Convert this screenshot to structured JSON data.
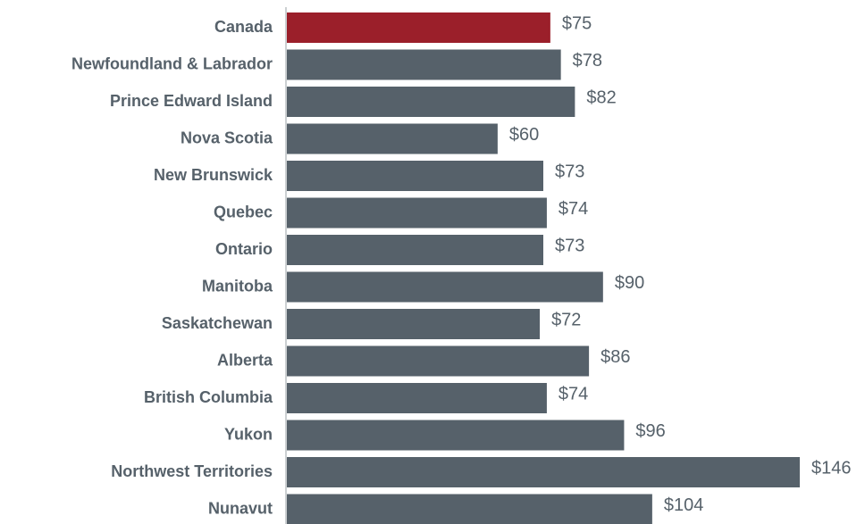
{
  "chart_data": {
    "type": "barh",
    "categories": [
      "Canada",
      "Newfoundland & Labrador",
      "Prince Edward Island",
      "Nova Scotia",
      "New Brunswick",
      "Quebec",
      "Ontario",
      "Manitoba",
      "Saskatchewan",
      "Alberta",
      "British Columbia",
      "Yukon",
      "Northwest Territories",
      "Nunavut"
    ],
    "values": [
      75,
      78,
      82,
      60,
      73,
      74,
      73,
      90,
      72,
      86,
      74,
      96,
      146,
      104
    ],
    "value_labels": [
      "$75",
      "$78",
      "$82",
      "$60",
      "$73",
      "$74",
      "$73",
      "$90",
      "$72",
      "$86",
      "$74",
      "$96",
      "$146",
      "$104"
    ],
    "colors": [
      "#9b1f2a",
      "#56616a",
      "#56616a",
      "#56616a",
      "#56616a",
      "#56616a",
      "#56616a",
      "#56616a",
      "#56616a",
      "#56616a",
      "#56616a",
      "#56616a",
      "#56616a",
      "#56616a"
    ]
  }
}
